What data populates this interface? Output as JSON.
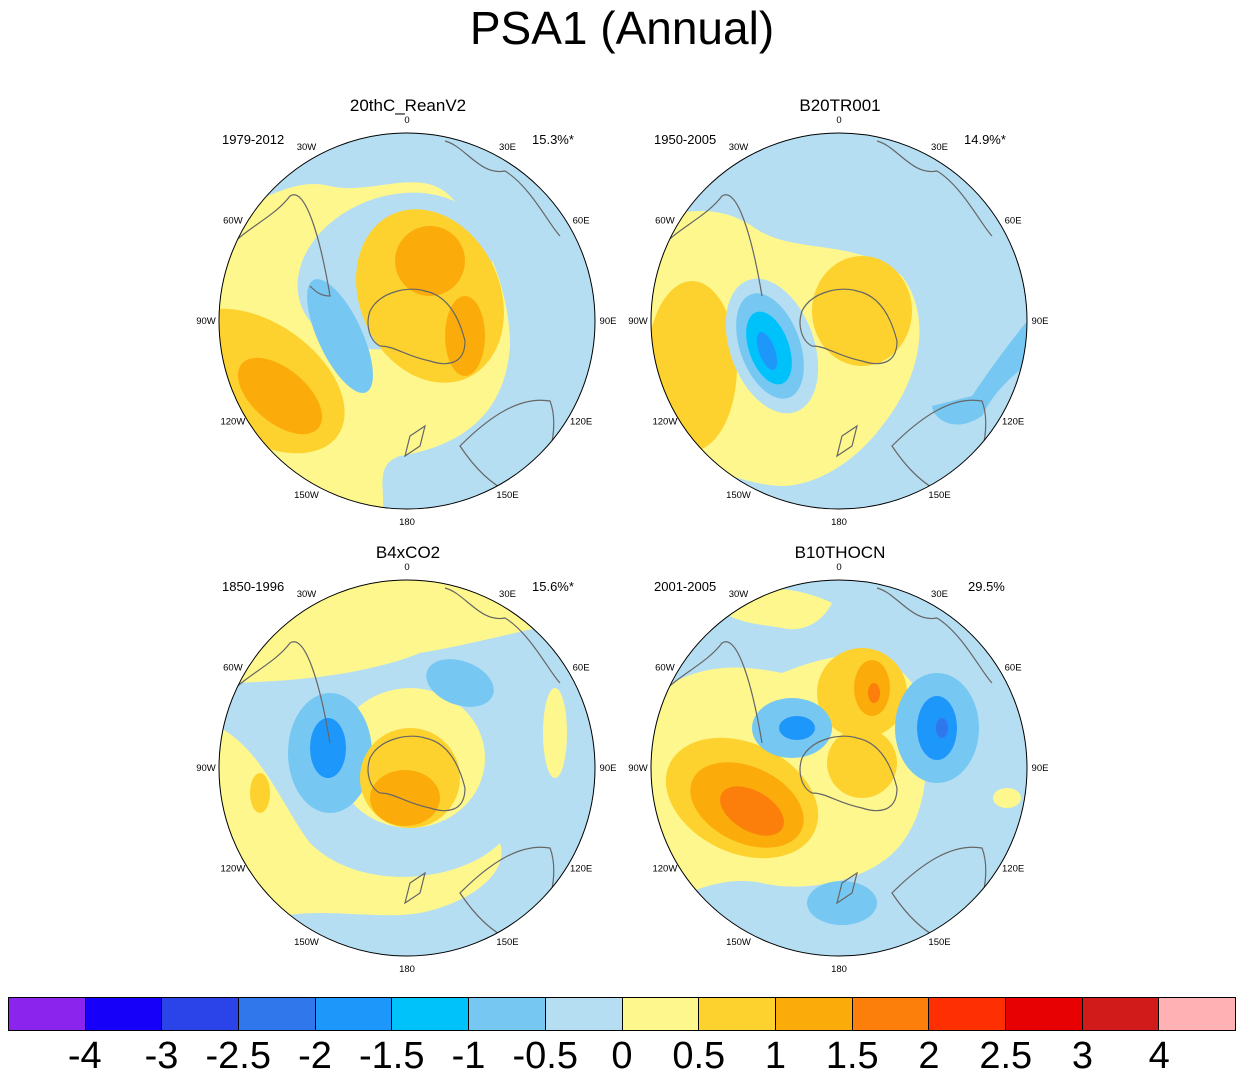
{
  "title": "PSA1 (Annual)",
  "colors": {
    "palette": [
      "#8b25ee",
      "#1600fa",
      "#2a44ea",
      "#3177ec",
      "#1e97fb",
      "#00c2fb",
      "#76c8f2",
      "#b5def2",
      "#fdf78d",
      "#fdd22f",
      "#fbac0b",
      "#fc7e0b",
      "#fe2f02",
      "#e80102",
      "#d11b1b",
      "#ffb1b3"
    ],
    "coast": "#666666"
  },
  "colorbar": {
    "labels": [
      "-4",
      "-3",
      "-2.5",
      "-2",
      "-1.5",
      "-1",
      "-0.5",
      "0",
      "0.5",
      "1",
      "1.5",
      "2",
      "2.5",
      "3",
      "4"
    ]
  },
  "longitude_labels": [
    "0",
    "30E",
    "60E",
    "90E",
    "120E",
    "150E",
    "180",
    "150W",
    "120W",
    "90W",
    "60W",
    "30W"
  ],
  "panels": [
    {
      "id": "p1",
      "title": "20thC_ReanV2",
      "years": "1979-2012",
      "percent": "15.3%*"
    },
    {
      "id": "p2",
      "title": "B20TR001",
      "years": "1950-2005",
      "percent": "14.9%*"
    },
    {
      "id": "p3",
      "title": "B4xCO2",
      "years": "1850-1996",
      "percent": "15.6%*"
    },
    {
      "id": "p4",
      "title": "B10THOCN",
      "years": "2001-2005",
      "percent": "29.5%"
    }
  ]
}
